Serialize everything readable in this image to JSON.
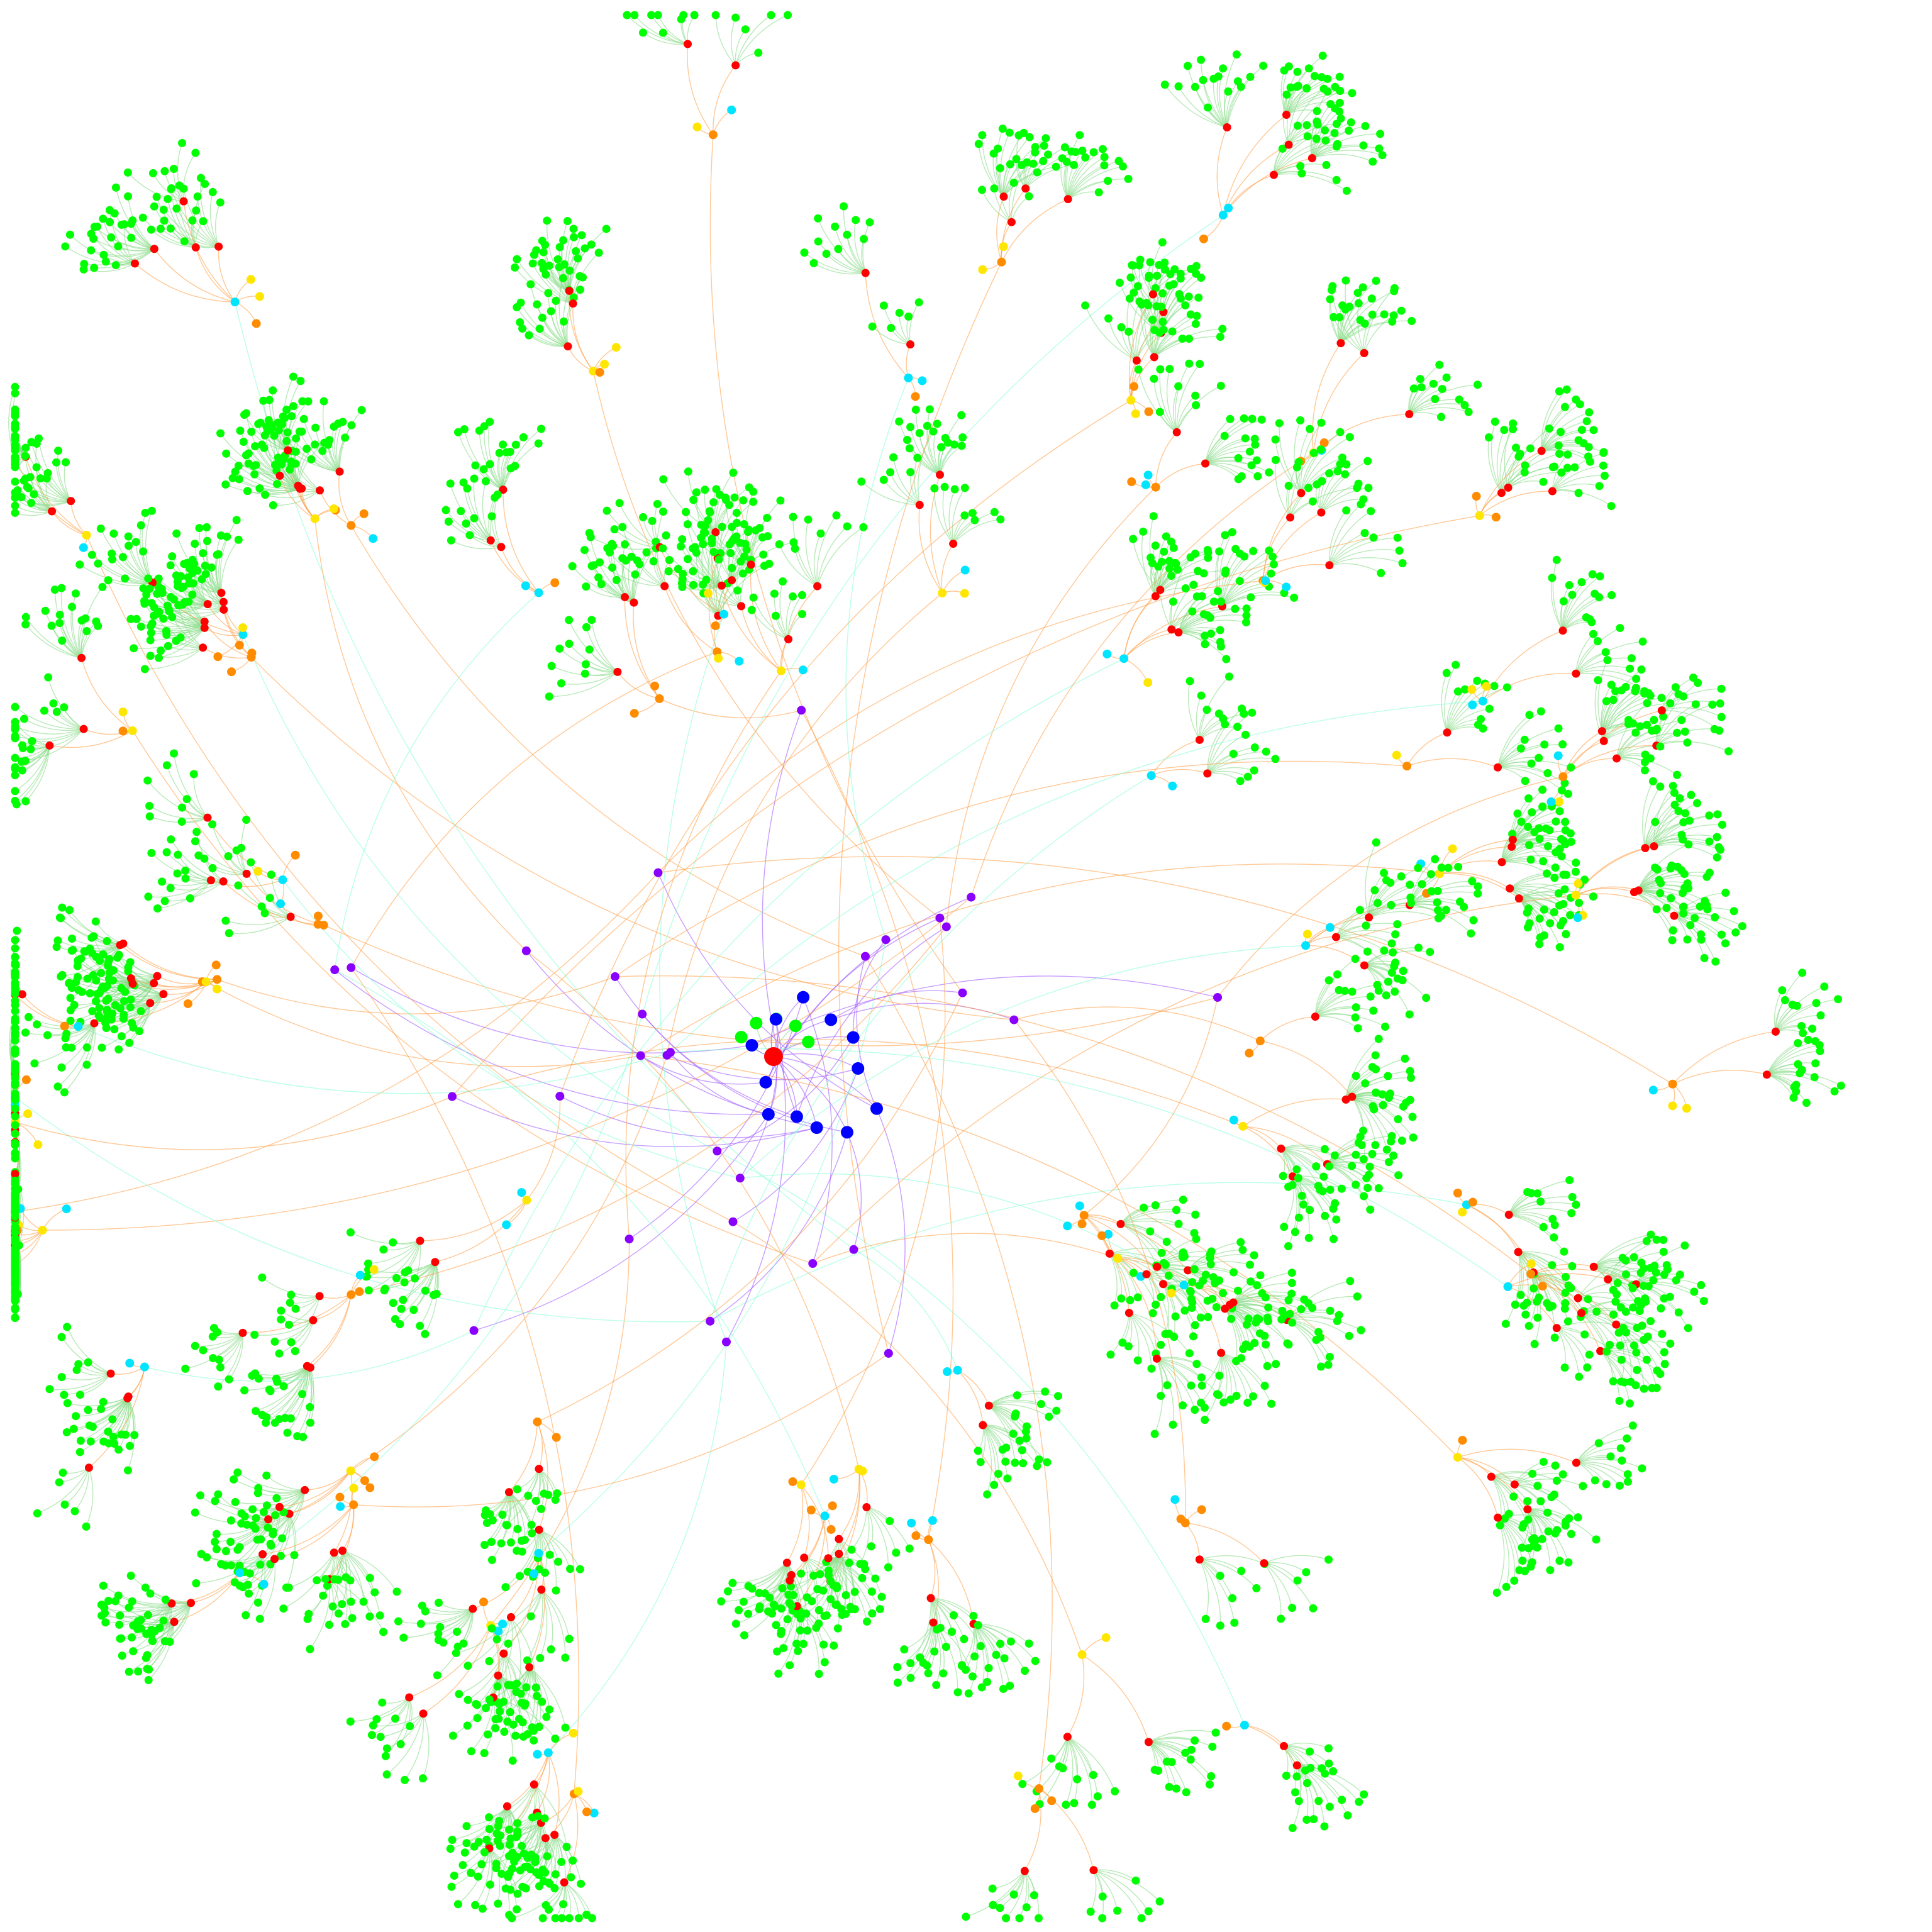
{
  "diagram": {
    "type": "radial-tree-graph",
    "background": "#ffffff",
    "labels": [],
    "root": {
      "color": "#ff0000"
    },
    "depth_colors": [
      "#ff0000",
      "#0000ff",
      "#8a00ff",
      "#ff8c00",
      "#00e5ff",
      "#ffe600",
      "#ff0000",
      "#00ff00"
    ],
    "edge_colors": {
      "purple": "#9a4dff",
      "orange": "#ff9a40",
      "green": "#7fd87f",
      "cyan": "#7fffd4"
    },
    "legend": null
  }
}
